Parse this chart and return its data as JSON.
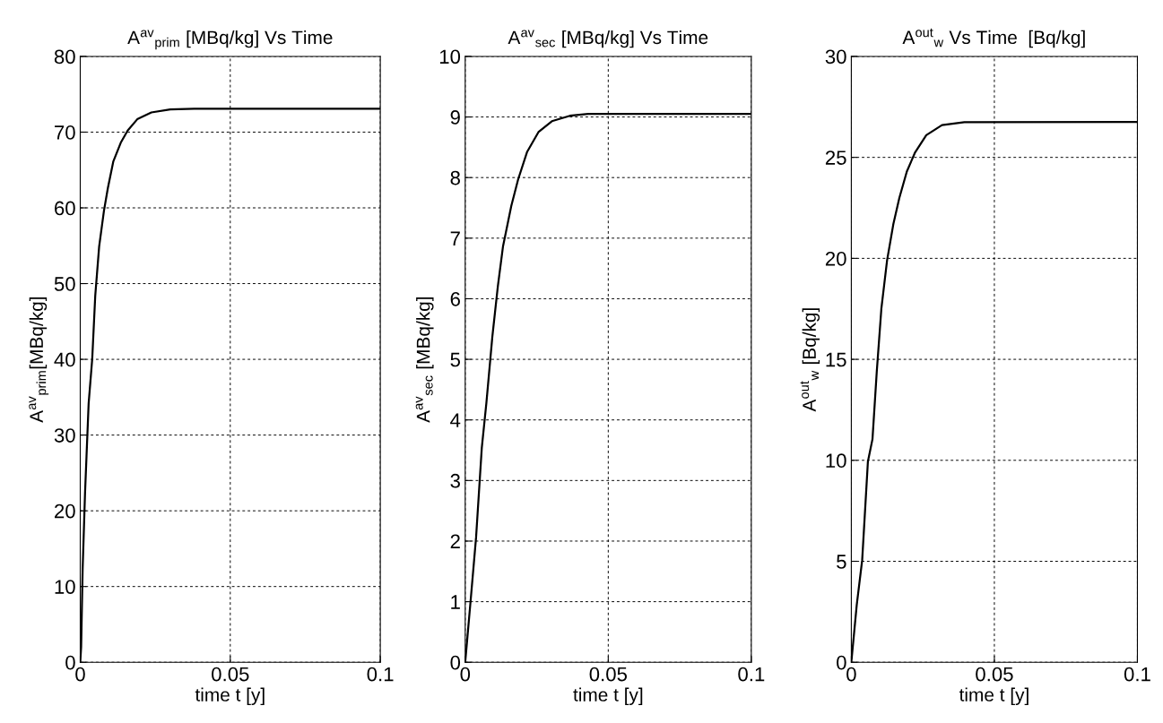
{
  "chart_data": [
    {
      "type": "line",
      "title": "A$^{av}$$_{prim}$ [MBq/kg] Vs Time",
      "xlabel": "time t [y]",
      "ylabel": "A$^{av}$$_{prim}$[MBq/kg]",
      "xlim": [
        0,
        0.1
      ],
      "xticks": [
        0,
        0.05,
        0.1
      ],
      "ylim": [
        0,
        80
      ],
      "yticks": [
        0,
        10,
        20,
        30,
        40,
        50,
        60,
        70,
        80
      ],
      "grid": true,
      "line_style": "solid",
      "marker": "none",
      "series": [
        {
          "color": "#000000",
          "x": [
            0,
            0.0003,
            0.0008,
            0.0016,
            0.0028,
            0.004,
            0.005,
            0.0063,
            0.0079,
            0.0092,
            0.011,
            0.0135,
            0.0158,
            0.019,
            0.0237,
            0.03,
            0.038,
            0.1
          ],
          "values": [
            0,
            2,
            12.3,
            22.4,
            34.2,
            40.1,
            48.4,
            54.9,
            59.6,
            62.6,
            66.1,
            68.6,
            70.2,
            71.7,
            72.6,
            73.0,
            73.1,
            73.1
          ]
        }
      ]
    },
    {
      "type": "line",
      "title": "A$^{av}$$_{sec}$ [MBq/kg] Vs Time",
      "xlabel": "time t [y]",
      "ylabel": "A$^{av}$$_{sec}$ [MBq/kg]",
      "xlim": [
        0,
        0.1
      ],
      "xticks": [
        0,
        0.05,
        0.1
      ],
      "ylim": [
        0,
        10
      ],
      "yticks": [
        0,
        1,
        2,
        3,
        4,
        5,
        6,
        7,
        8,
        9,
        10
      ],
      "grid": true,
      "line_style": "solid",
      "marker": "none",
      "series": [
        {
          "color": "#000000",
          "x": [
            0,
            0.0019,
            0.0038,
            0.0058,
            0.0074,
            0.0095,
            0.0114,
            0.0132,
            0.0161,
            0.0185,
            0.0216,
            0.0256,
            0.0303,
            0.0366,
            0.043,
            0.1
          ],
          "values": [
            0,
            1.02,
            2.06,
            3.54,
            4.28,
            5.38,
            6.2,
            6.86,
            7.53,
            7.97,
            8.42,
            8.75,
            8.93,
            9.02,
            9.05,
            9.05
          ]
        }
      ]
    },
    {
      "type": "line",
      "title": "A$^{out}$$_{w}$ Vs Time  [Bq/kg]",
      "xlabel": "time t [y]",
      "ylabel": "A$^{out}$$_{w}$ [Bq/kg]",
      "xlim": [
        0,
        0.1
      ],
      "xticks": [
        0,
        0.05,
        0.1
      ],
      "ylim": [
        0,
        30
      ],
      "yticks": [
        0,
        5,
        10,
        15,
        20,
        25,
        30
      ],
      "grid": true,
      "line_style": "solid",
      "marker": "none",
      "series": [
        {
          "color": "#000000",
          "x": [
            0,
            0.0019,
            0.0038,
            0.0058,
            0.0074,
            0.0089,
            0.0105,
            0.0125,
            0.0147,
            0.0168,
            0.0194,
            0.0223,
            0.0262,
            0.0317,
            0.0395,
            0.1
          ],
          "values": [
            0,
            2.84,
            5.06,
            9.94,
            11.05,
            14.4,
            17.5,
            19.9,
            21.7,
            23.0,
            24.3,
            25.25,
            26.1,
            26.6,
            26.74,
            26.75
          ]
        }
      ]
    }
  ]
}
